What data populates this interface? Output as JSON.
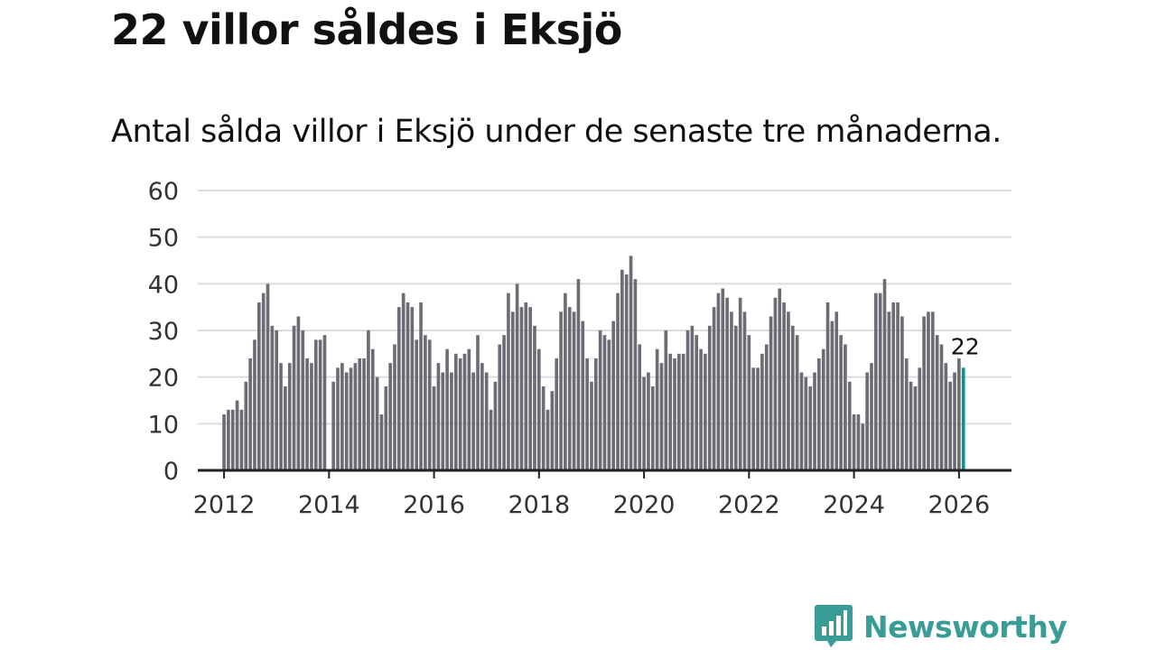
{
  "header": {
    "title": "22 villor såldes i Eksjö",
    "subtitle": "Antal sålda villor i Eksjö under de senaste tre månaderna."
  },
  "branding": {
    "name": "Newsworthy",
    "icon": "newsworthy-bar-chart-icon",
    "color": "#3a9c96"
  },
  "colors": {
    "bar": "#6c6c74",
    "highlight": "#00958e",
    "grid": "#dcdcdc",
    "axis": "#222222",
    "text": "#333333"
  },
  "chart_data": {
    "type": "bar",
    "title": "22 villor såldes i Eksjö",
    "subtitle": "Antal sålda villor i Eksjö under de senaste tre månaderna.",
    "xlabel": "",
    "ylabel": "",
    "ylim": [
      0,
      60
    ],
    "yticks": [
      0,
      10,
      20,
      30,
      40,
      50,
      60
    ],
    "xlim": [
      2011.5,
      2027.0
    ],
    "xticks": [
      2012,
      2014,
      2016,
      2018,
      2020,
      2022,
      2024,
      2026
    ],
    "grid": true,
    "period": "monthly, rolling three-month total",
    "start": "2012-01",
    "values": [
      12,
      13,
      13,
      15,
      13,
      19,
      24,
      28,
      36,
      38,
      40,
      31,
      30,
      23,
      18,
      23,
      31,
      33,
      30,
      24,
      23,
      28,
      28,
      29,
      0,
      19,
      22,
      23,
      21,
      22,
      23,
      24,
      24,
      30,
      26,
      20,
      12,
      18,
      23,
      27,
      35,
      38,
      36,
      35,
      28,
      36,
      29,
      28,
      18,
      23,
      21,
      26,
      21,
      25,
      24,
      25,
      26,
      21,
      29,
      23,
      21,
      13,
      19,
      27,
      29,
      38,
      34,
      40,
      35,
      36,
      35,
      31,
      26,
      18,
      13,
      17,
      24,
      34,
      38,
      35,
      34,
      41,
      32,
      24,
      19,
      24,
      30,
      29,
      28,
      32,
      38,
      43,
      42,
      46,
      41,
      27,
      20,
      21,
      18,
      26,
      23,
      30,
      25,
      24,
      25,
      25,
      30,
      31,
      29,
      26,
      25,
      31,
      35,
      38,
      39,
      37,
      34,
      31,
      37,
      34,
      29,
      22,
      22,
      25,
      27,
      33,
      37,
      39,
      36,
      34,
      31,
      29,
      21,
      20,
      18,
      21,
      24,
      26,
      36,
      32,
      34,
      29,
      27,
      19,
      12,
      12,
      10,
      21,
      23,
      38,
      38,
      41,
      34,
      36,
      36,
      33,
      24,
      19,
      18,
      22,
      33,
      34,
      34,
      29,
      27,
      23,
      19,
      21,
      24,
      22
    ],
    "highlight_last": true,
    "annotations": [
      {
        "label": "22",
        "target": "last_bar"
      }
    ]
  }
}
